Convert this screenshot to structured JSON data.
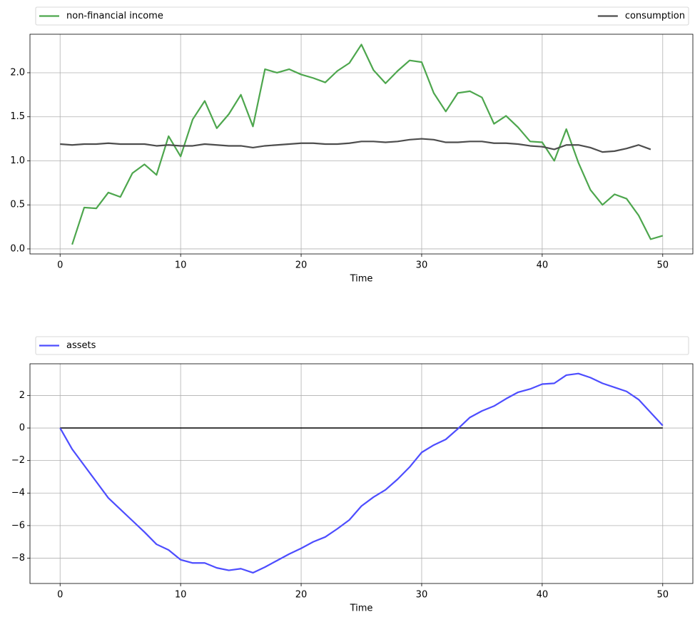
{
  "chart_data": [
    {
      "type": "line",
      "xlabel": "Time",
      "grid": true,
      "legend": "above",
      "legend_mode": "expand",
      "x": [
        0,
        1,
        2,
        3,
        4,
        5,
        6,
        7,
        8,
        9,
        10,
        11,
        12,
        13,
        14,
        15,
        16,
        17,
        18,
        19,
        20,
        21,
        22,
        23,
        24,
        25,
        26,
        27,
        28,
        29,
        30,
        31,
        32,
        33,
        34,
        35,
        36,
        37,
        38,
        39,
        40,
        41,
        42,
        43,
        44,
        45,
        46,
        47,
        48,
        49,
        50
      ],
      "xlim": [
        -2.5,
        52.5
      ],
      "xticks": [
        0,
        10,
        20,
        30,
        40,
        50
      ],
      "ylim": [
        -0.057,
        2.437
      ],
      "yticks": [
        {
          "value": 0,
          "label": "0.0"
        },
        0.5,
        {
          "value": 1,
          "label": "1.0"
        },
        1.5,
        {
          "value": 2,
          "label": "2.0"
        }
      ],
      "series": [
        {
          "name": "non-financial income",
          "color": "#4da64d",
          "values": [
            null,
            0.05,
            0.47,
            0.46,
            0.64,
            0.59,
            0.86,
            0.96,
            0.84,
            1.28,
            1.05,
            1.47,
            1.68,
            1.37,
            1.53,
            1.75,
            1.39,
            2.04,
            2.0,
            2.04,
            1.98,
            1.94,
            1.89,
            2.02,
            2.11,
            2.32,
            2.03,
            1.88,
            2.02,
            2.14,
            2.12,
            1.77,
            1.56,
            1.77,
            1.79,
            1.72,
            1.42,
            1.51,
            1.38,
            1.22,
            1.21,
            1.0,
            1.36,
            0.98,
            0.67,
            0.5,
            0.62,
            0.57,
            0.38,
            0.11,
            0.15
          ]
        },
        {
          "name": "consumption",
          "color": "#4d4d4d",
          "values": [
            1.19,
            1.18,
            1.19,
            1.19,
            1.2,
            1.19,
            1.19,
            1.19,
            1.17,
            1.18,
            1.17,
            1.17,
            1.19,
            1.18,
            1.17,
            1.17,
            1.15,
            1.17,
            1.18,
            1.19,
            1.2,
            1.2,
            1.19,
            1.19,
            1.2,
            1.22,
            1.22,
            1.21,
            1.22,
            1.24,
            1.25,
            1.24,
            1.21,
            1.21,
            1.22,
            1.22,
            1.2,
            1.2,
            1.19,
            1.17,
            1.16,
            1.13,
            1.18,
            1.18,
            1.15,
            1.1,
            1.11,
            1.14,
            1.18,
            1.13,
            null
          ]
        }
      ]
    },
    {
      "type": "line",
      "xlabel": "Time",
      "grid": true,
      "legend": "above",
      "legend_mode": "left",
      "x": [
        0,
        1,
        2,
        3,
        4,
        5,
        6,
        7,
        8,
        9,
        10,
        11,
        12,
        13,
        14,
        15,
        16,
        17,
        18,
        19,
        20,
        21,
        22,
        23,
        24,
        25,
        26,
        27,
        28,
        29,
        30,
        31,
        32,
        33,
        34,
        35,
        36,
        37,
        38,
        39,
        40,
        41,
        42,
        43,
        44,
        45,
        46,
        47,
        48,
        49,
        50
      ],
      "xlim": [
        -2.5,
        52.5
      ],
      "xticks": [
        0,
        10,
        20,
        30,
        40,
        50
      ],
      "ylim": [
        -9.56,
        3.95
      ],
      "yticks": [
        {
          "value": -8,
          "label": "−8"
        },
        {
          "value": -6,
          "label": "−6"
        },
        {
          "value": -4,
          "label": "−4"
        },
        {
          "value": -2,
          "label": "−2"
        },
        0,
        2
      ],
      "hline": 0,
      "hline_color": "#000000",
      "series": [
        {
          "name": "assets",
          "color": "#4d4dff",
          "values": [
            0,
            -1.3,
            -2.3,
            -3.3,
            -4.3,
            -5.0,
            -5.7,
            -6.4,
            -7.15,
            -7.5,
            -8.1,
            -8.3,
            -8.3,
            -8.6,
            -8.75,
            -8.65,
            -8.9,
            -8.55,
            -8.15,
            -7.75,
            -7.4,
            -7.0,
            -6.7,
            -6.2,
            -5.65,
            -4.8,
            -4.25,
            -3.8,
            -3.15,
            -2.4,
            -1.5,
            -1.05,
            -0.7,
            -0.05,
            0.65,
            1.05,
            1.35,
            1.8,
            2.2,
            2.4,
            2.7,
            2.75,
            3.25,
            3.35,
            3.1,
            2.75,
            2.5,
            2.25,
            1.75,
            0.95,
            0.15
          ]
        }
      ]
    }
  ]
}
